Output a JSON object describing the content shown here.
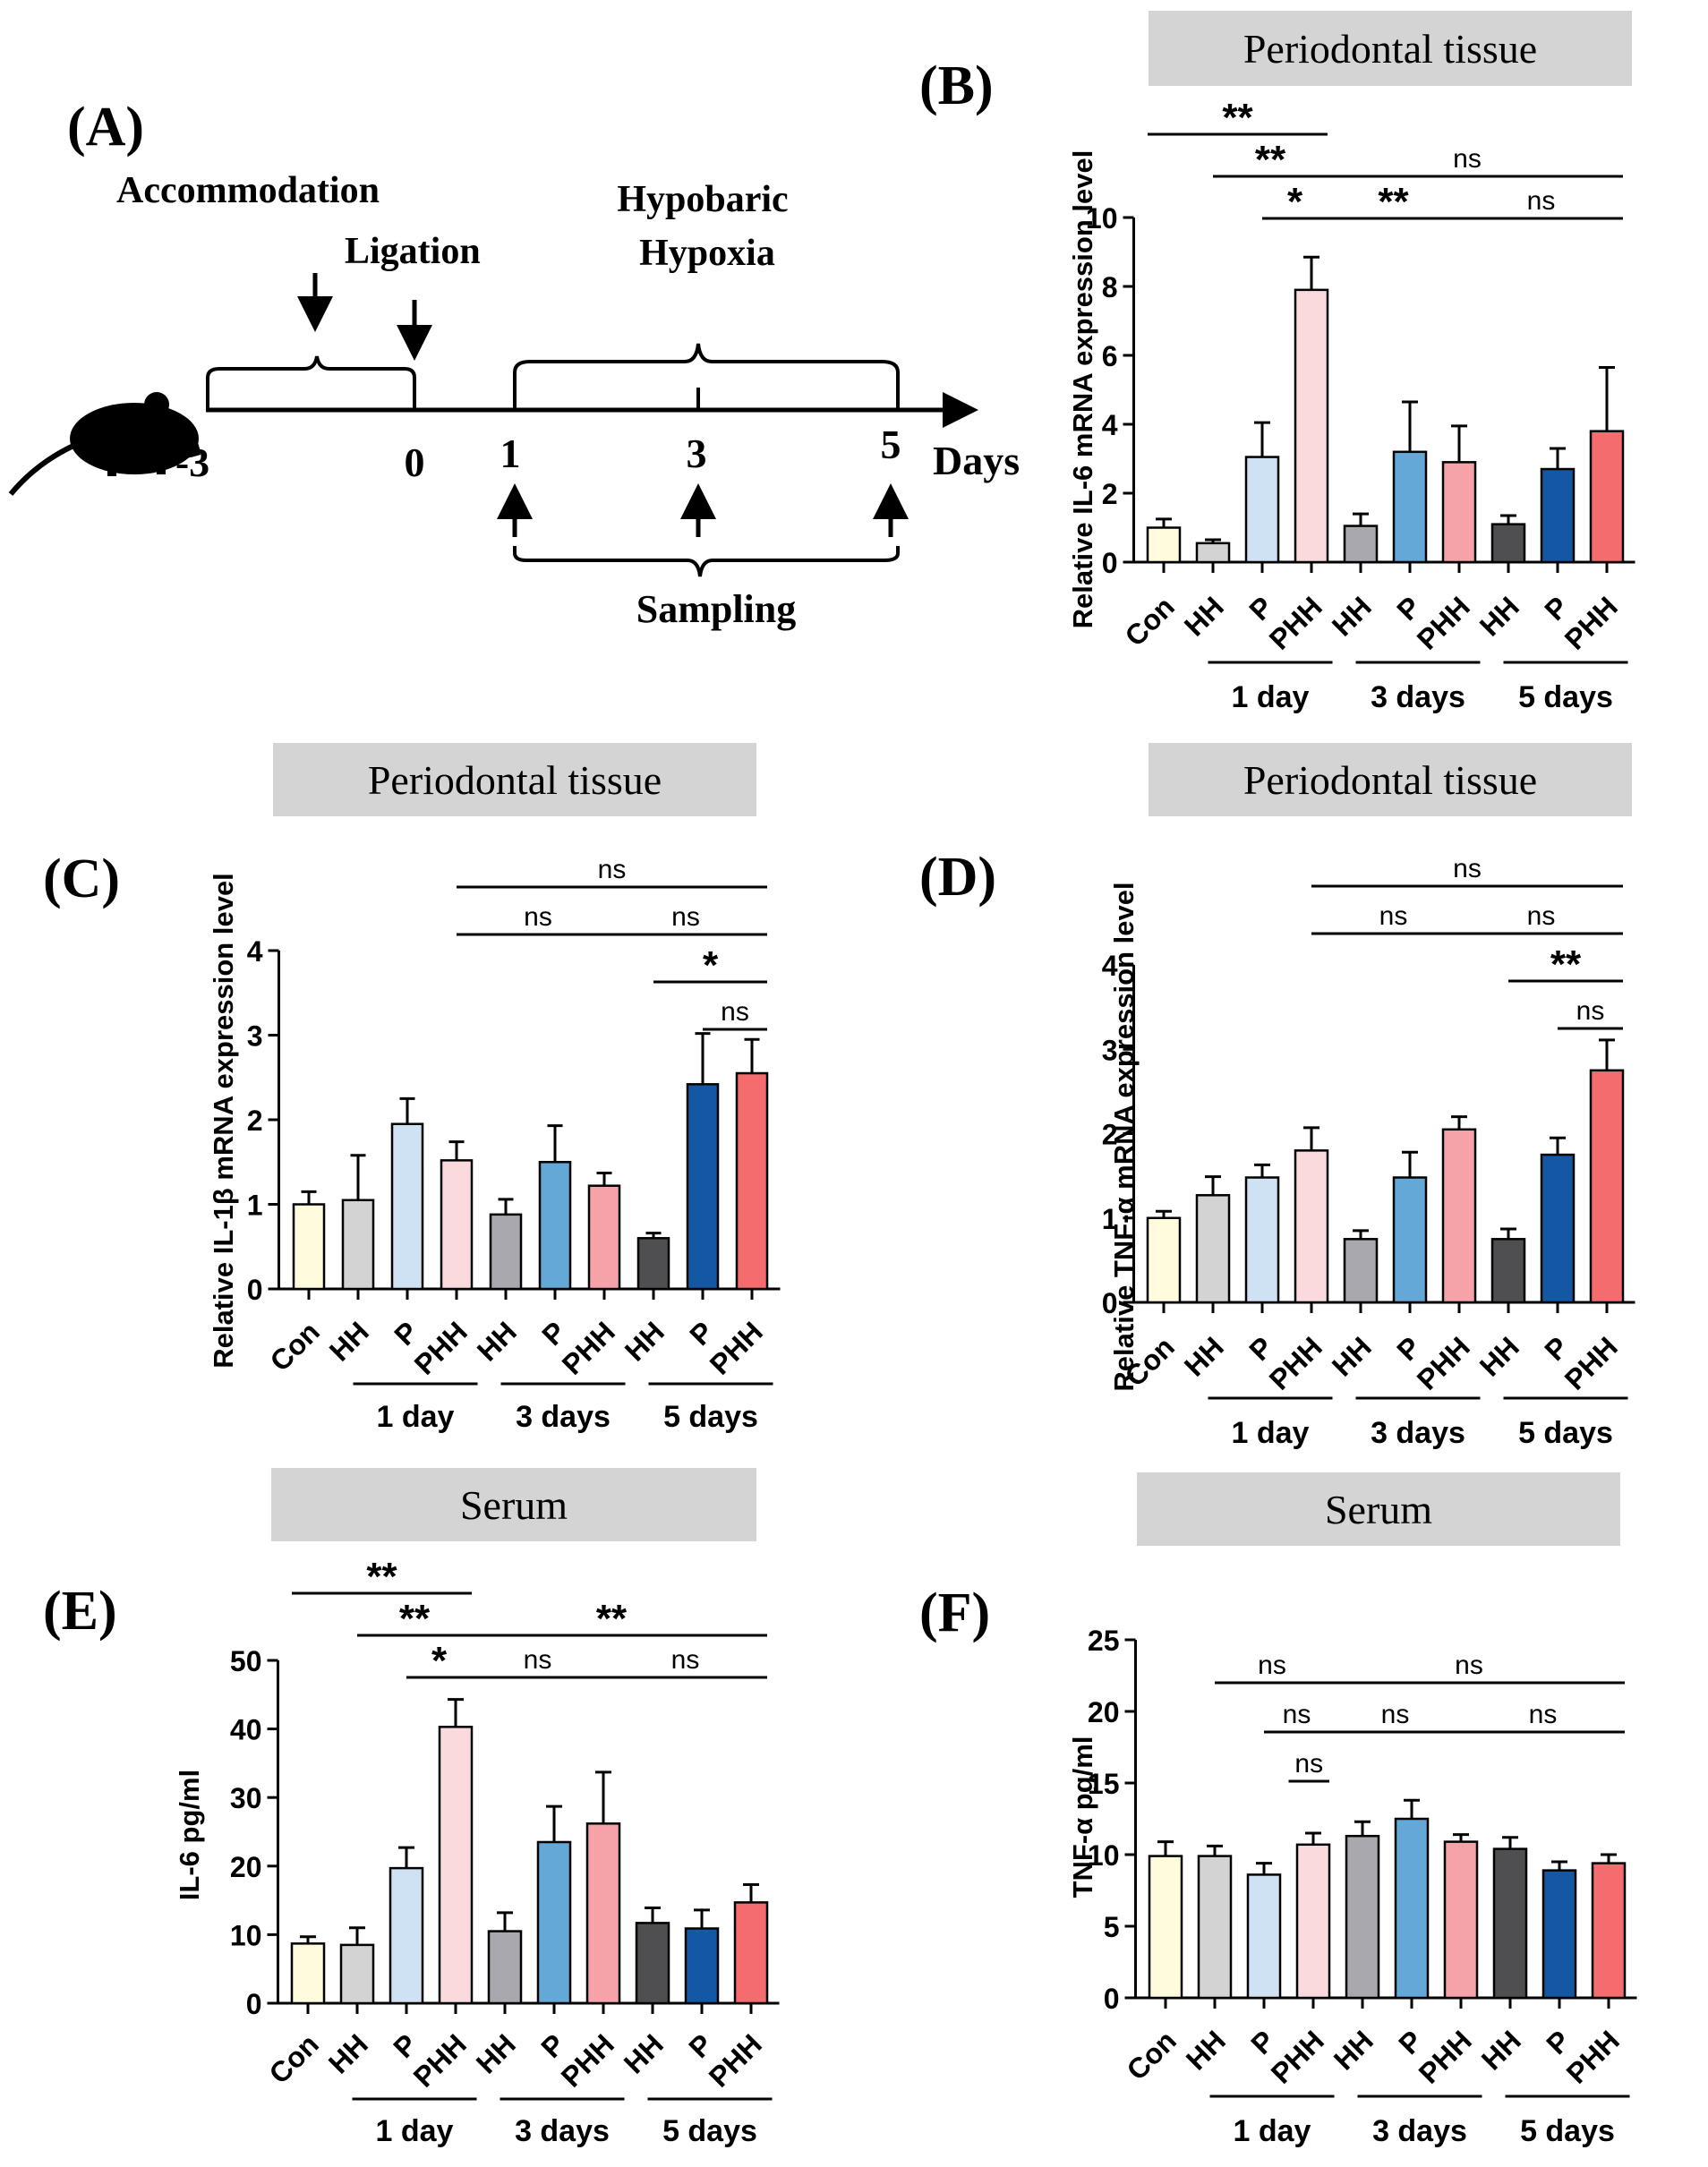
{
  "colors": {
    "Con": "#FFFBDC",
    "HH1": "#D3D3D3",
    "P1": "#CFE2F3",
    "PHH1": "#FADADD",
    "HH3": "#A8A8AE",
    "P3": "#63A8D6",
    "PHH3": "#F5A3A8",
    "HH5": "#4F4F52",
    "P5": "#1457A3",
    "PHH5": "#F46C6E",
    "header_bg": "#D4D4D4"
  },
  "schematic": {
    "label": "(A)",
    "accommodation": "Accommodation",
    "ligation": "Ligation",
    "hh_line1": "Hypobaric",
    "hh_line2": "Hypoxia",
    "ticks": [
      "-3",
      "0",
      "1",
      "3",
      "5"
    ],
    "days": "Days",
    "sampling": "Sampling"
  },
  "chart_data": [
    {
      "id": "B",
      "panel_label": "(B)",
      "type": "bar",
      "header": "Periodontal tissue",
      "ylabel": "Relative IL-6 mRNA expression level",
      "ylim": [
        0,
        10
      ],
      "yticks": [
        "0",
        "2",
        "4",
        "6",
        "8",
        "10"
      ],
      "categories": [
        "Con",
        "HH",
        "P",
        "PHH",
        "HH",
        "P",
        "PHH",
        "HH",
        "P",
        "PHH"
      ],
      "groups": [
        "1 day",
        "3 days",
        "5 days"
      ],
      "values": [
        1.0,
        0.55,
        3.05,
        7.9,
        1.05,
        3.2,
        2.9,
        1.1,
        2.7,
        3.8
      ],
      "errors": [
        0.25,
        0.1,
        1.0,
        0.95,
        0.35,
        1.45,
        1.05,
        0.25,
        0.6,
        1.85
      ],
      "significance": [
        {
          "label": "**",
          "from": 0,
          "to": 3,
          "level": 0.0
        },
        {
          "label": "**",
          "from": 1,
          "to": 3,
          "level": 1.0
        },
        {
          "label": "ns",
          "from": 3,
          "to": 9,
          "level": 1.0
        },
        {
          "label": "*",
          "from": 2,
          "to": 3,
          "level": 2.0
        },
        {
          "label": "**",
          "from": 3,
          "to": 6,
          "level": 2.0
        },
        {
          "label": "ns",
          "from": 6,
          "to": 9,
          "level": 2.0
        }
      ]
    },
    {
      "id": "C",
      "panel_label": "(C)",
      "type": "bar",
      "header": "Periodontal tissue",
      "ylabel": "Relative IL-1β mRNA expression level",
      "ylim": [
        0,
        4
      ],
      "yticks": [
        "0",
        "1",
        "2",
        "3",
        "4"
      ],
      "categories": [
        "Con",
        "HH",
        "P",
        "PHH",
        "HH",
        "P",
        "PHH",
        "HH",
        "P",
        "PHH"
      ],
      "groups": [
        "1 day",
        "3 days",
        "5 days"
      ],
      "values": [
        1.0,
        1.05,
        1.95,
        1.52,
        0.88,
        1.5,
        1.22,
        0.6,
        2.42,
        2.55
      ],
      "errors": [
        0.15,
        0.53,
        0.3,
        0.22,
        0.18,
        0.43,
        0.15,
        0.06,
        0.6,
        0.4
      ],
      "significance": [
        {
          "label": "ns",
          "from": 3,
          "to": 9,
          "level": 0.0
        },
        {
          "label": "ns",
          "from": 3,
          "to": 6,
          "level": 1.0
        },
        {
          "label": "ns",
          "from": 6,
          "to": 9,
          "level": 1.0
        },
        {
          "label": "*",
          "from": 7,
          "to": 9,
          "level": 2.0
        },
        {
          "label": "ns",
          "from": 8,
          "to": 9,
          "level": 3.0
        }
      ]
    },
    {
      "id": "D",
      "panel_label": "(D)",
      "type": "bar",
      "header": "Periodontal tissue",
      "ylabel": "Relative TNF-α mRNA expression level",
      "ylim": [
        0,
        4
      ],
      "yticks": [
        "0",
        "1",
        "2",
        "3",
        "4"
      ],
      "categories": [
        "Con",
        "HH",
        "P",
        "PHH",
        "HH",
        "P",
        "PHH",
        "HH",
        "P",
        "PHH"
      ],
      "groups": [
        "1 day",
        "3 days",
        "5 days"
      ],
      "values": [
        1.0,
        1.27,
        1.48,
        1.8,
        0.75,
        1.48,
        2.05,
        0.75,
        1.75,
        2.75
      ],
      "errors": [
        0.08,
        0.22,
        0.15,
        0.27,
        0.1,
        0.3,
        0.15,
        0.12,
        0.2,
        0.36
      ],
      "significance": [
        {
          "label": "ns",
          "from": 3,
          "to": 9,
          "level": 0.0
        },
        {
          "label": "ns",
          "from": 3,
          "to": 6,
          "level": 1.0
        },
        {
          "label": "ns",
          "from": 6,
          "to": 9,
          "level": 1.0
        },
        {
          "label": "**",
          "from": 7,
          "to": 9,
          "level": 2.0
        },
        {
          "label": "ns",
          "from": 8,
          "to": 9,
          "level": 3.0
        }
      ]
    },
    {
      "id": "E",
      "panel_label": "(E)",
      "type": "bar",
      "header": "Serum",
      "ylabel": "IL-6 pg/ml",
      "ylim": [
        0,
        50
      ],
      "yticks": [
        "0",
        "10",
        "20",
        "30",
        "40",
        "50"
      ],
      "categories": [
        "Con",
        "HH",
        "P",
        "PHH",
        "HH",
        "P",
        "PHH",
        "HH",
        "P",
        "PHH"
      ],
      "groups": [
        "1 day",
        "3 days",
        "5 days"
      ],
      "values": [
        8.7,
        8.5,
        19.7,
        40.3,
        10.5,
        23.5,
        26.2,
        11.7,
        10.9,
        14.7
      ],
      "errors": [
        1.0,
        2.5,
        3.0,
        4.0,
        2.7,
        5.2,
        7.5,
        2.2,
        2.7,
        2.6
      ],
      "significance": [
        {
          "label": "**",
          "from": 0,
          "to": 3,
          "level": 0.0
        },
        {
          "label": "**",
          "from": 1,
          "to": 3,
          "level": 1.0
        },
        {
          "label": "**",
          "from": 3,
          "to": 9,
          "level": 1.0
        },
        {
          "label": "*",
          "from": 2,
          "to": 3,
          "level": 2.0
        },
        {
          "label": "ns",
          "from": 3,
          "to": 6,
          "level": 2.0
        },
        {
          "label": "ns",
          "from": 6,
          "to": 9,
          "level": 2.0
        }
      ]
    },
    {
      "id": "F",
      "panel_label": "(F)",
      "type": "bar",
      "header": "Serum",
      "ylabel": "TNF-α pg/ml",
      "ylim": [
        0,
        25
      ],
      "yticks": [
        "0",
        "5",
        "10",
        "15",
        "20",
        "25"
      ],
      "categories": [
        "Con",
        "HH",
        "P",
        "PHH",
        "HH",
        "P",
        "PHH",
        "HH",
        "P",
        "PHH"
      ],
      "groups": [
        "1 day",
        "3 days",
        "5 days"
      ],
      "values": [
        9.9,
        9.9,
        8.6,
        10.7,
        11.3,
        12.5,
        10.9,
        10.4,
        8.9,
        9.4
      ],
      "errors": [
        1.0,
        0.7,
        0.8,
        0.8,
        1.0,
        1.3,
        0.5,
        0.8,
        0.6,
        0.6
      ],
      "significance": [
        {
          "label": "ns",
          "from": 1,
          "to": 3,
          "level": 0.0
        },
        {
          "label": "ns",
          "from": 3,
          "to": 9,
          "level": 0.0
        },
        {
          "label": "ns",
          "from": 2,
          "to": 3,
          "level": 1.0
        },
        {
          "label": "ns",
          "from": 3,
          "to": 6,
          "level": 1.0
        },
        {
          "label": "ns",
          "from": 6,
          "to": 9,
          "level": 1.0
        },
        {
          "label": "ns",
          "from": 2.5,
          "to": 3,
          "level": 2.0
        }
      ]
    }
  ]
}
